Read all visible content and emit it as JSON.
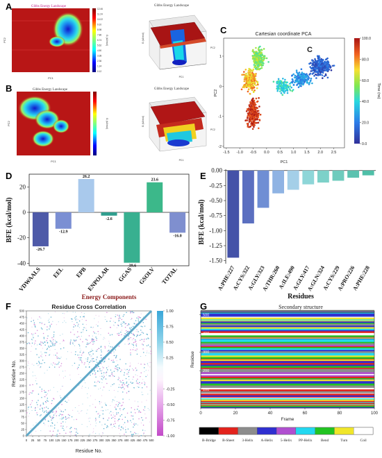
{
  "panel_labels": {
    "a": "A",
    "b": "B",
    "c": "C",
    "d": "D",
    "e": "E",
    "f": "F",
    "g": "G"
  },
  "chart_data": [
    {
      "id": "A-heatmap",
      "type": "heatmap",
      "title": "Gibbs Energy Landscape",
      "xlabel": "PC1",
      "ylabel": "PC2",
      "colorbar_ticks": [
        "12.46",
        "11.24",
        "10.22",
        "9.10",
        "8.98",
        "7.86",
        "6.74",
        "5.62",
        "4.50",
        "3.38",
        "2.36",
        "1.24",
        "0.12"
      ],
      "colorbar_label": "G (kJ/mol)"
    },
    {
      "id": "A-surface",
      "type": "surface3d",
      "title": "Gibbs Energy Landscape",
      "zlabel": "G (kJ/mol)",
      "xlabel": "PC1",
      "ylabel": "PC2"
    },
    {
      "id": "B-heatmap",
      "type": "heatmap",
      "title": "Gibbs Energy Landscape",
      "xlabel": "PC1",
      "ylabel": "PC2",
      "colorbar_label": "G (kJ/mol)"
    },
    {
      "id": "B-surface",
      "type": "surface3d",
      "title": "Gibbs Energy Landscape",
      "zlabel": "G (kJ/mol)",
      "xlabel": "PC1",
      "ylabel": "PC2"
    },
    {
      "id": "C",
      "type": "scatter",
      "title": "Cartesian coordinate PCA",
      "xlabel": "PC1",
      "ylabel": "PC2",
      "xlim": [
        -1.6,
        2.9
      ],
      "ylim": [
        -2.05,
        1.6
      ],
      "xticks": [
        -1.5,
        -1.0,
        -0.5,
        0.0,
        0.5,
        1.0,
        1.5,
        2.0,
        2.5
      ],
      "xtick_labels": [
        "-1.5",
        "-1.0",
        "-0.5",
        "0.0",
        "0.5",
        "1.0",
        "1.5",
        "2.0",
        "2.5"
      ],
      "yticks": [
        -2,
        -1,
        0,
        1
      ],
      "ytick_labels": [
        "-2",
        "-1",
        "0",
        "1"
      ],
      "colorbar_label": "Time (ns)",
      "colorbar_ticks": [
        0,
        20,
        40,
        60,
        80,
        100
      ],
      "colorbar_tick_labels": [
        "0.0",
        "20.0",
        "40.0",
        "60.0",
        "80.0",
        "100.0"
      ],
      "annotation": "C"
    },
    {
      "id": "D",
      "type": "bar",
      "categories": [
        "VDWAALS",
        "EEL",
        "EPB",
        "ENPOLAR",
        "GGAS",
        "GSOLV",
        "TOTAL"
      ],
      "values": [
        -26.7,
        -12.9,
        26.2,
        -2.6,
        -39.6,
        23.6,
        -16.0
      ],
      "data_labels": [
        "-26.7",
        "-12.9",
        "26.2",
        "-2.6",
        "-39.6",
        "23.6",
        "-16.0"
      ],
      "colors": [
        "#4e5aa8",
        "#7b8fd3",
        "#a9c9ec",
        "#2f9e8e",
        "#38b090",
        "#3cb88a",
        "#7f8fcf"
      ],
      "ylabel": "BFE (kcal/mol)",
      "xlabel": "Energy Components",
      "ylim": [
        -42,
        30
      ],
      "yticks": [
        -40,
        -20,
        0,
        20
      ],
      "ytick_labels": [
        "-40",
        "-20",
        "0",
        "20"
      ]
    },
    {
      "id": "E",
      "type": "bar",
      "categories": [
        "A:PHE:227",
        "A:CYS:322",
        "A:GLY:323",
        "A:THR:260",
        "A:ILE:490",
        "A:GLY:417",
        "A:GLN:324",
        "A:CYS:229",
        "A:PRO:226",
        "A:PHE:228"
      ],
      "values": [
        -1.45,
        -0.88,
        -0.62,
        -0.38,
        -0.32,
        -0.23,
        -0.2,
        -0.17,
        -0.12,
        -0.08
      ],
      "colors": [
        "#4452a8",
        "#5b6fc0",
        "#6f8ed4",
        "#8fb3e3",
        "#a4cfe8",
        "#8ed6d8",
        "#7dd1c9",
        "#6fcbbd",
        "#5cc2b0",
        "#4fbfa8"
      ],
      "ylabel": "BFE (kcal/mol)",
      "xlabel": "Residues",
      "ylim": [
        -1.55,
        0.02
      ],
      "yticks": [
        0,
        -0.25,
        -0.5,
        -0.75,
        -1.0,
        -1.25,
        -1.5
      ],
      "ytick_labels": [
        "0.00",
        "-0.25",
        "-0.50",
        "-0.75",
        "-1.00",
        "-1.25",
        "-1.50"
      ]
    },
    {
      "id": "F",
      "type": "heatmap",
      "title": "Residue Cross Correlation",
      "xlabel": "Residue No.",
      "ylabel": "Residue No.",
      "xticks": [
        0,
        25,
        50,
        75,
        100,
        125,
        150,
        175,
        200,
        225,
        250,
        275,
        300,
        325,
        350,
        375,
        400,
        425,
        450,
        475,
        500
      ],
      "xtick_labels": [
        "0",
        "25",
        "50",
        "75",
        "100",
        "125",
        "150",
        "175",
        "200",
        "225",
        "250",
        "275",
        "300",
        "325",
        "350",
        "375",
        "400",
        "425",
        "450",
        "475",
        "500"
      ],
      "yticks": [
        0,
        25,
        50,
        75,
        100,
        125,
        150,
        175,
        200,
        225,
        250,
        275,
        300,
        325,
        350,
        375,
        400,
        425,
        450,
        475,
        500
      ],
      "ytick_labels": [
        "0",
        "25",
        "50",
        "75",
        "100",
        "125",
        "150",
        "175",
        "200",
        "225",
        "250",
        "275",
        "300",
        "325",
        "350",
        "375",
        "400",
        "425",
        "450",
        "475",
        "500"
      ],
      "colorbar_ticks": [
        1.0,
        0.75,
        0.5,
        0.25,
        -0.25,
        -0.5,
        -0.75,
        -1.0
      ],
      "colorbar_tick_labels": [
        "1.00",
        "0.75",
        "0.50",
        "0.25",
        "-0.25",
        "-0.50",
        "-0.75",
        "-1.00"
      ]
    },
    {
      "id": "G",
      "type": "heatmap",
      "title": "Secondary structure",
      "xlabel": "Frame",
      "ylabel": "Residue",
      "xlim": [
        0,
        100
      ],
      "ylim": [
        0,
        520
      ],
      "xticks": [
        0,
        20,
        40,
        60,
        80,
        100
      ],
      "xtick_labels": [
        "0",
        "20",
        "40",
        "60",
        "80",
        "100"
      ],
      "yticks": [
        100,
        200,
        300,
        400,
        500
      ],
      "ytick_labels": [
        "100",
        "200",
        "300",
        "400",
        "500"
      ],
      "legend": [
        "B-Bridge",
        "B-Sheet",
        "3-Helix",
        "A-Helix",
        "5-Helix",
        "PP-Helix",
        "Bend",
        "Turn",
        "Coil"
      ],
      "legend_colors": [
        "#000000",
        "#e3231c",
        "#8c8c8c",
        "#2f2fd0",
        "#b04fd0",
        "#22d8f0",
        "#22c422",
        "#f0e62a",
        "#ffffff"
      ]
    }
  ]
}
